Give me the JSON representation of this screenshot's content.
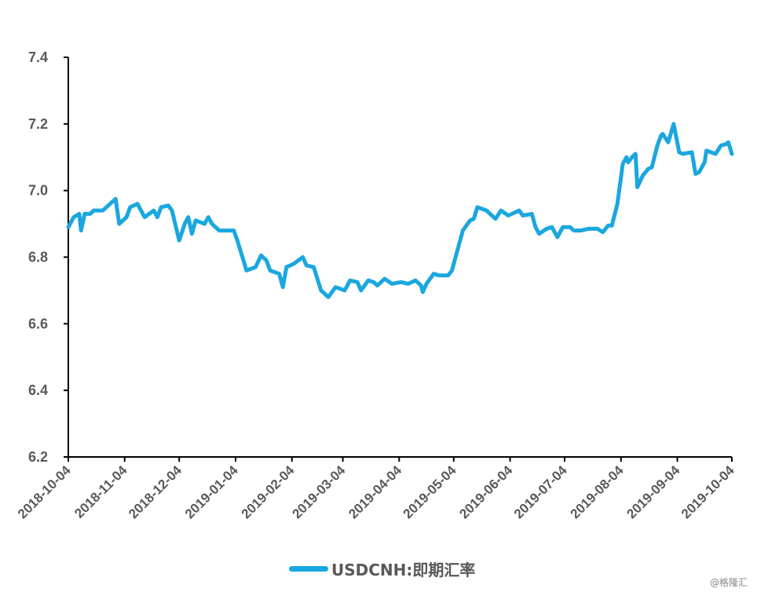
{
  "chart_data": {
    "type": "line",
    "title": "",
    "xlabel": "",
    "ylabel": "",
    "x_start_date": "2018-10-04",
    "x_unit": "days since 2018-10-04",
    "xlim": [
      0,
      365
    ],
    "ylim": [
      6.2,
      7.4
    ],
    "yticks": [
      "6.2",
      "6.4",
      "6.6",
      "6.8",
      "7.0",
      "7.2",
      "7.4"
    ],
    "xticks": [
      {
        "label": "2018-10-04",
        "day": 0
      },
      {
        "label": "2018-11-04",
        "day": 31
      },
      {
        "label": "2018-12-04",
        "day": 61
      },
      {
        "label": "2019-01-04",
        "day": 92
      },
      {
        "label": "2019-02-04",
        "day": 123
      },
      {
        "label": "2019-03-04",
        "day": 151
      },
      {
        "label": "2019-04-04",
        "day": 182
      },
      {
        "label": "2019-05-04",
        "day": 212
      },
      {
        "label": "2019-06-04",
        "day": 243
      },
      {
        "label": "2019-07-04",
        "day": 273
      },
      {
        "label": "2019-08-04",
        "day": 304
      },
      {
        "label": "2019-09-04",
        "day": 335
      },
      {
        "label": "2019-10-04",
        "day": 365
      }
    ],
    "grid": false,
    "legend_position": "bottom",
    "series": [
      {
        "name": "USDCNH:即期汇率",
        "color": "#1aa7e0",
        "points": [
          [
            0,
            6.89
          ],
          [
            3,
            6.92
          ],
          [
            6,
            6.93
          ],
          [
            7,
            6.88
          ],
          [
            9,
            6.93
          ],
          [
            12,
            6.93
          ],
          [
            14,
            6.94
          ],
          [
            19,
            6.94
          ],
          [
            23,
            6.96
          ],
          [
            26,
            6.975
          ],
          [
            28,
            6.9
          ],
          [
            32,
            6.92
          ],
          [
            34,
            6.95
          ],
          [
            38,
            6.96
          ],
          [
            42,
            6.92
          ],
          [
            47,
            6.94
          ],
          [
            49,
            6.92
          ],
          [
            51,
            6.95
          ],
          [
            55,
            6.955
          ],
          [
            57,
            6.94
          ],
          [
            61,
            6.85
          ],
          [
            64,
            6.9
          ],
          [
            66,
            6.92
          ],
          [
            68,
            6.87
          ],
          [
            70,
            6.91
          ],
          [
            75,
            6.9
          ],
          [
            77,
            6.92
          ],
          [
            79,
            6.9
          ],
          [
            83,
            6.88
          ],
          [
            88,
            6.88
          ],
          [
            91,
            6.88
          ],
          [
            93,
            6.85
          ],
          [
            98,
            6.76
          ],
          [
            103,
            6.77
          ],
          [
            106,
            6.805
          ],
          [
            109,
            6.79
          ],
          [
            111,
            6.76
          ],
          [
            116,
            6.75
          ],
          [
            118,
            6.71
          ],
          [
            120,
            6.77
          ],
          [
            124,
            6.78
          ],
          [
            129,
            6.8
          ],
          [
            131,
            6.775
          ],
          [
            135,
            6.77
          ],
          [
            139,
            6.7
          ],
          [
            143,
            6.68
          ],
          [
            147,
            6.71
          ],
          [
            152,
            6.7
          ],
          [
            155,
            6.73
          ],
          [
            159,
            6.725
          ],
          [
            161,
            6.7
          ],
          [
            165,
            6.73
          ],
          [
            168,
            6.725
          ],
          [
            170,
            6.715
          ],
          [
            174,
            6.735
          ],
          [
            178,
            6.72
          ],
          [
            183,
            6.725
          ],
          [
            187,
            6.72
          ],
          [
            191,
            6.73
          ],
          [
            194,
            6.715
          ],
          [
            195,
            6.695
          ],
          [
            197,
            6.72
          ],
          [
            201,
            6.75
          ],
          [
            204,
            6.745
          ],
          [
            209,
            6.745
          ],
          [
            211,
            6.76
          ],
          [
            213,
            6.8
          ],
          [
            217,
            6.88
          ],
          [
            221,
            6.91
          ],
          [
            223,
            6.915
          ],
          [
            225,
            6.95
          ],
          [
            230,
            6.94
          ],
          [
            235,
            6.915
          ],
          [
            238,
            6.94
          ],
          [
            242,
            6.925
          ],
          [
            248,
            6.94
          ],
          [
            250,
            6.925
          ],
          [
            255,
            6.93
          ],
          [
            257,
            6.89
          ],
          [
            259,
            6.87
          ],
          [
            263,
            6.885
          ],
          [
            266,
            6.89
          ],
          [
            269,
            6.86
          ],
          [
            272,
            6.89
          ],
          [
            276,
            6.89
          ],
          [
            278,
            6.88
          ],
          [
            282,
            6.88
          ],
          [
            286,
            6.885
          ],
          [
            291,
            6.885
          ],
          [
            294,
            6.875
          ],
          [
            297,
            6.895
          ],
          [
            299,
            6.895
          ],
          [
            302,
            6.96
          ],
          [
            305,
            7.08
          ],
          [
            307,
            7.1
          ],
          [
            308,
            7.085
          ],
          [
            310,
            7.1
          ],
          [
            312,
            7.11
          ],
          [
            313,
            7.01
          ],
          [
            316,
            7.045
          ],
          [
            319,
            7.065
          ],
          [
            321,
            7.07
          ],
          [
            324,
            7.135
          ],
          [
            326,
            7.165
          ],
          [
            327,
            7.17
          ],
          [
            330,
            7.145
          ],
          [
            333,
            7.2
          ],
          [
            336,
            7.115
          ],
          [
            338,
            7.11
          ],
          [
            343,
            7.115
          ],
          [
            345,
            7.05
          ],
          [
            347,
            7.055
          ],
          [
            350,
            7.085
          ],
          [
            351,
            7.12
          ],
          [
            356,
            7.11
          ],
          [
            359,
            7.135
          ],
          [
            362,
            7.14
          ],
          [
            363,
            7.145
          ],
          [
            365,
            7.11
          ]
        ]
      }
    ]
  },
  "legend": {
    "label": "USDCNH:即期汇率"
  },
  "watermark": "@格隆汇"
}
